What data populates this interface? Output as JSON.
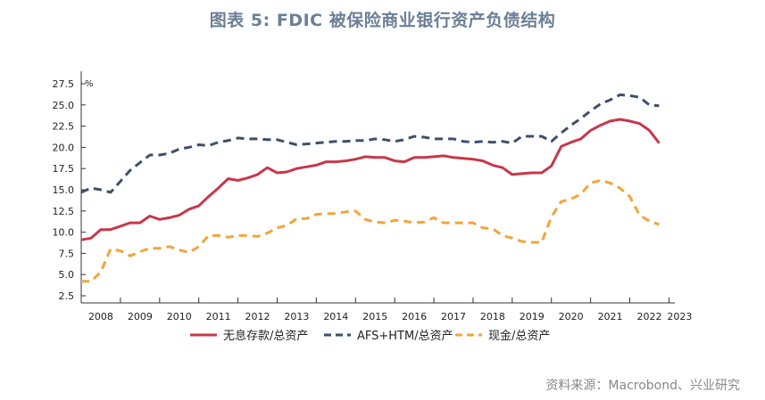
{
  "title": "图表 5:  FDIC 被保险商业银行资产负债结构",
  "source": "资料来源：Macrobond、兴业研究",
  "chart_data": {
    "type": "line",
    "title": "图表 5:  FDIC 被保险商业银行资产负债结构",
    "ylabel": "%",
    "xlabel": "",
    "ylim": [
      2.5,
      27.5
    ],
    "xlim": [
      2008,
      2023.15
    ],
    "yticks": [
      "27.5",
      "25.0",
      "22.5",
      "20.0",
      "17.5",
      "15.0",
      "12.5",
      "10.0",
      "7.5",
      "5.0",
      "2.5"
    ],
    "ytick_values": [
      27.5,
      25.0,
      22.5,
      20.0,
      17.5,
      15.0,
      12.5,
      10.0,
      7.5,
      5.0,
      2.5
    ],
    "xticks": [
      "2008",
      "2009",
      "2010",
      "2011",
      "2012",
      "2013",
      "2014",
      "2015",
      "2016",
      "2017",
      "2018",
      "2019",
      "2020",
      "2021",
      "2022",
      "2023"
    ],
    "grid": false,
    "legend_position": "bottom",
    "x": [
      2008.0,
      2008.25,
      2008.5,
      2008.75,
      2009.0,
      2009.25,
      2009.5,
      2009.75,
      2010.0,
      2010.25,
      2010.5,
      2010.75,
      2011.0,
      2011.25,
      2011.5,
      2011.75,
      2012.0,
      2012.25,
      2012.5,
      2012.75,
      2013.0,
      2013.25,
      2013.5,
      2013.75,
      2014.0,
      2014.25,
      2014.5,
      2014.75,
      2015.0,
      2015.25,
      2015.5,
      2015.75,
      2016.0,
      2016.25,
      2016.5,
      2016.75,
      2017.0,
      2017.25,
      2017.5,
      2017.75,
      2018.0,
      2018.25,
      2018.5,
      2018.75,
      2019.0,
      2019.25,
      2019.5,
      2019.75,
      2020.0,
      2020.25,
      2020.5,
      2020.75,
      2021.0,
      2021.25,
      2021.5,
      2021.75,
      2022.0,
      2022.25,
      2022.5,
      2022.75
    ],
    "series": [
      {
        "name": "无息存款/总资产",
        "color": "#c8374a",
        "dash": "solid",
        "values": [
          9.1,
          9.3,
          10.3,
          10.3,
          10.7,
          11.1,
          11.1,
          11.9,
          11.5,
          11.7,
          12.0,
          12.7,
          13.1,
          14.2,
          15.2,
          16.3,
          16.1,
          16.4,
          16.8,
          17.6,
          17.0,
          17.1,
          17.5,
          17.7,
          17.9,
          18.3,
          18.3,
          18.4,
          18.6,
          18.9,
          18.8,
          18.8,
          18.4,
          18.3,
          18.8,
          18.8,
          18.9,
          19.0,
          18.8,
          18.7,
          18.6,
          18.4,
          17.9,
          17.6,
          16.8,
          16.9,
          17.0,
          17.0,
          17.8,
          20.1,
          20.6,
          21.0,
          22.0,
          22.6,
          23.1,
          23.3,
          23.1,
          22.8,
          22.0,
          20.5
        ]
      },
      {
        "name": "AFS+HTM/总资产",
        "color": "#3d4f6b",
        "dash": "dashed",
        "values": [
          14.7,
          15.2,
          15.0,
          14.7,
          16.0,
          17.3,
          18.2,
          19.1,
          19.1,
          19.3,
          19.8,
          20.0,
          20.3,
          20.2,
          20.6,
          20.8,
          21.1,
          21.0,
          21.0,
          20.9,
          20.9,
          20.6,
          20.3,
          20.4,
          20.5,
          20.6,
          20.7,
          20.7,
          20.8,
          20.8,
          21.0,
          20.9,
          20.7,
          20.9,
          21.3,
          21.2,
          21.0,
          21.0,
          21.0,
          20.7,
          20.6,
          20.7,
          20.6,
          20.7,
          20.5,
          21.3,
          21.3,
          21.3,
          20.7,
          21.7,
          22.6,
          23.4,
          24.3,
          25.1,
          25.6,
          26.2,
          26.1,
          25.9,
          25.0,
          24.9
        ]
      },
      {
        "name": "现金/总资产",
        "color": "#f2a53a",
        "dash": "dashed",
        "values": [
          4.2,
          4.2,
          5.3,
          8.0,
          7.8,
          7.2,
          7.7,
          8.1,
          8.1,
          8.3,
          7.9,
          7.6,
          8.3,
          9.6,
          9.6,
          9.4,
          9.6,
          9.6,
          9.5,
          9.9,
          10.5,
          10.8,
          11.6,
          11.6,
          12.1,
          12.2,
          12.2,
          12.4,
          12.5,
          11.5,
          11.2,
          11.1,
          11.4,
          11.3,
          11.1,
          11.2,
          11.7,
          11.1,
          11.1,
          11.1,
          11.1,
          10.5,
          10.4,
          9.6,
          9.3,
          8.9,
          8.8,
          8.8,
          11.8,
          13.6,
          13.9,
          14.5,
          15.8,
          16.1,
          15.8,
          15.2,
          14.2,
          12.0,
          11.3,
          10.9
        ]
      }
    ]
  }
}
